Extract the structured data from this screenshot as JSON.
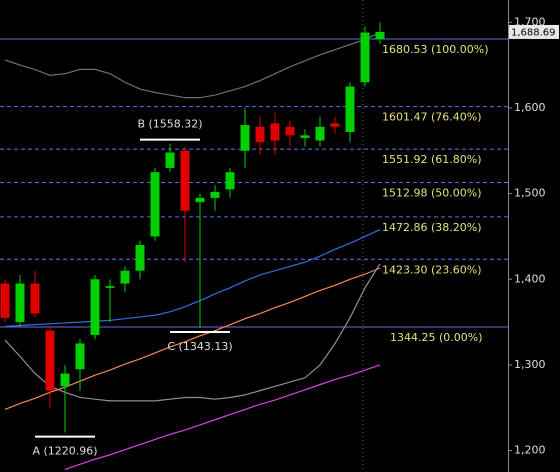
{
  "chart_data": {
    "type": "candlestick",
    "ylim": [
      1175,
      1726
    ],
    "yticks": [
      {
        "value": 1200,
        "label": "1,200"
      },
      {
        "value": 1300,
        "label": "1,300"
      },
      {
        "value": 1400,
        "label": "1,400"
      },
      {
        "value": 1500,
        "label": "1,500"
      },
      {
        "value": 1600,
        "label": "1,600"
      },
      {
        "value": 1700,
        "label": "1,700"
      }
    ],
    "up_color": "#00d000",
    "down_color": "#e00000",
    "candles": [
      {
        "open": 1395,
        "high": 1400,
        "low": 1350,
        "close": 1355
      },
      {
        "open": 1350,
        "high": 1405,
        "low": 1345,
        "close": 1395
      },
      {
        "open": 1395,
        "high": 1410,
        "low": 1355,
        "close": 1360
      },
      {
        "open": 1340,
        "high": 1345,
        "low": 1250,
        "close": 1270
      },
      {
        "open": 1275,
        "high": 1300,
        "low": 1220.96,
        "close": 1290
      },
      {
        "open": 1295,
        "high": 1330,
        "low": 1270,
        "close": 1325
      },
      {
        "open": 1335,
        "high": 1405,
        "low": 1330,
        "close": 1400
      },
      {
        "open": 1390,
        "high": 1400,
        "low": 1350,
        "close": 1392
      },
      {
        "open": 1395,
        "high": 1415,
        "low": 1385,
        "close": 1410
      },
      {
        "open": 1410,
        "high": 1445,
        "low": 1400,
        "close": 1440
      },
      {
        "open": 1450,
        "high": 1530,
        "low": 1445,
        "close": 1525
      },
      {
        "open": 1530,
        "high": 1558.32,
        "low": 1525,
        "close": 1548
      },
      {
        "open": 1550,
        "high": 1555,
        "low": 1420,
        "close": 1480
      },
      {
        "open": 1490,
        "high": 1500,
        "low": 1343.13,
        "close": 1495
      },
      {
        "open": 1495,
        "high": 1510,
        "low": 1480,
        "close": 1502
      },
      {
        "open": 1505,
        "high": 1530,
        "low": 1495,
        "close": 1525
      },
      {
        "open": 1550,
        "high": 1600,
        "low": 1530,
        "close": 1580
      },
      {
        "open": 1578,
        "high": 1590,
        "low": 1545,
        "close": 1560
      },
      {
        "open": 1582,
        "high": 1595,
        "low": 1545,
        "close": 1562
      },
      {
        "open": 1578,
        "high": 1585,
        "low": 1555,
        "close": 1568
      },
      {
        "open": 1565,
        "high": 1575,
        "low": 1555,
        "close": 1568
      },
      {
        "open": 1562,
        "high": 1590,
        "low": 1555,
        "close": 1578
      },
      {
        "open": 1582,
        "high": 1590,
        "low": 1570,
        "close": 1578
      },
      {
        "open": 1572,
        "high": 1630,
        "low": 1560,
        "close": 1625
      },
      {
        "open": 1630,
        "high": 1695,
        "low": 1625,
        "close": 1688
      },
      {
        "open": 1680,
        "high": 1700,
        "low": 1675,
        "close": 1688.69
      }
    ],
    "series": [
      {
        "color": "#2f6fe0",
        "values": [
          1345,
          1346,
          1347,
          1348,
          1349,
          1350,
          1351,
          1352,
          1354,
          1356,
          1358,
          1362,
          1368,
          1375,
          1383,
          1390,
          1398,
          1405,
          1410,
          1415,
          1420,
          1427,
          1435,
          1442,
          1450,
          1458
        ]
      },
      {
        "color": "#f08a50",
        "values": [
          1248,
          1255,
          1261,
          1268,
          1274,
          1281,
          1288,
          1294,
          1301,
          1307,
          1314,
          1321,
          1327,
          1334,
          1340,
          1347,
          1354,
          1360,
          1367,
          1373,
          1380,
          1387,
          1393,
          1400,
          1406,
          1413
        ]
      },
      {
        "color": "#e040e0",
        "values": [
          null,
          null,
          null,
          null,
          1178,
          1184,
          1190,
          1195,
          1201,
          1207,
          1213,
          1219,
          1224,
          1230,
          1236,
          1242,
          1248,
          1254,
          1259,
          1265,
          1271,
          1277,
          1283,
          1288,
          1294,
          1300
        ]
      },
      {
        "color": "#707070",
        "values": [
          1656,
          1650,
          1645,
          1638,
          1640,
          1645,
          1645,
          1640,
          1630,
          1622,
          1618,
          1615,
          1612,
          1612,
          1615,
          1620,
          1625,
          1632,
          1640,
          1648,
          1655,
          1662,
          1668,
          1674,
          1680,
          1688
        ]
      },
      {
        "color": "#909090",
        "values": [
          1329,
          1310,
          1290,
          1275,
          1268,
          1262,
          1260,
          1258,
          1258,
          1258,
          1258,
          1260,
          1262,
          1262,
          1260,
          1262,
          1265,
          1270,
          1275,
          1280,
          1285,
          1300,
          1325,
          1355,
          1390,
          1418
        ]
      }
    ],
    "fib_levels": [
      {
        "value": 1680.53,
        "label": "1680.53 (100.00%)",
        "solid": true
      },
      {
        "value": 1601.47,
        "label": "1601.47 (76.40%)",
        "solid": false
      },
      {
        "value": 1551.92,
        "label": "1551.92 (61.80%)",
        "solid": false
      },
      {
        "value": 1512.98,
        "label": "1512.98 (50.00%)",
        "solid": false
      },
      {
        "value": 1472.86,
        "label": "1472.86 (38.20%)",
        "solid": false
      },
      {
        "value": 1423.3,
        "label": "1423.30 (23.60%)",
        "solid": false
      },
      {
        "value": 1344.25,
        "label": "1344.25 (0.00%)",
        "solid": true
      }
    ],
    "annotations": [
      {
        "value": 1220.96,
        "label": "A (1220.96)"
      },
      {
        "value": 1558.32,
        "label": "B (1558.32)"
      },
      {
        "value": 1343.13,
        "label": "C (1343.13)"
      }
    ],
    "last_price": {
      "value": 1688.69,
      "label": "1,688.69"
    }
  }
}
